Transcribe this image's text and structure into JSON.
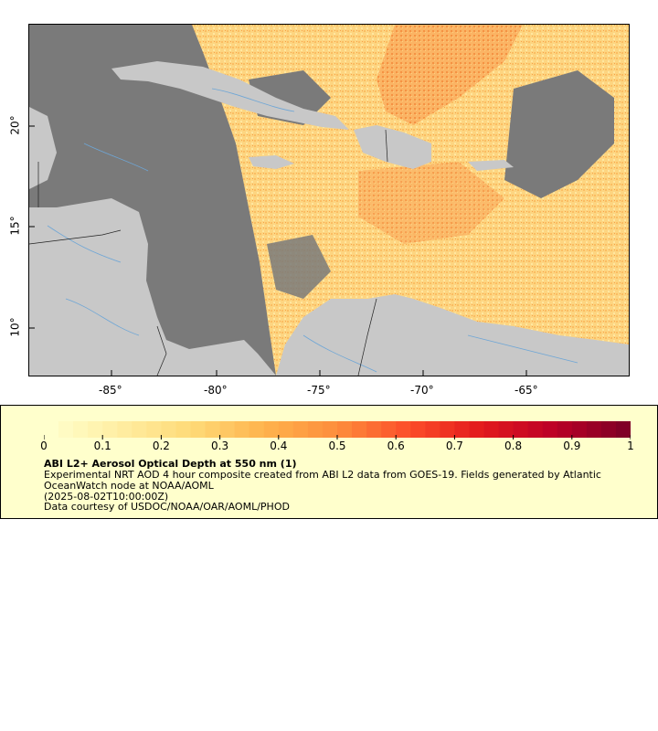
{
  "map": {
    "x_ticks": [
      "-85°",
      "-80°",
      "-75°",
      "-70°",
      "-65°"
    ],
    "y_ticks": [
      "20°",
      "15°",
      "10°"
    ],
    "colors": {
      "ocean": "#7a7a7a",
      "land": "#c8c8c8",
      "aod_low": "#ffe08a",
      "aod_mid": "#fcb05a",
      "aod_high": "#f07a30"
    }
  },
  "legend": {
    "colorbar_labels": [
      "0",
      "0.1",
      "0.2",
      "0.3",
      "0.4",
      "0.5",
      "0.6",
      "0.7",
      "0.8",
      "0.9",
      "1"
    ],
    "title": "ABI L2+ Aerosol Optical Depth at 550 nm (1)",
    "description": "Experimental NRT AOD 4 hour composite created from ABI L2 data from GOES-19. Fields generated by Atlantic OceanWatch node at NOAA/AOML",
    "timestamp": "(2025-08-02T10:00:00Z)",
    "credit": "Data courtesy of USDOC/NOAA/OAR/AOML/PHOD",
    "scale_colors": [
      "#ffffcc",
      "#ffeda0",
      "#fed976",
      "#feb24c",
      "#fd8d3c",
      "#fc4e2a",
      "#e31a1c",
      "#bd0026",
      "#800026"
    ]
  }
}
